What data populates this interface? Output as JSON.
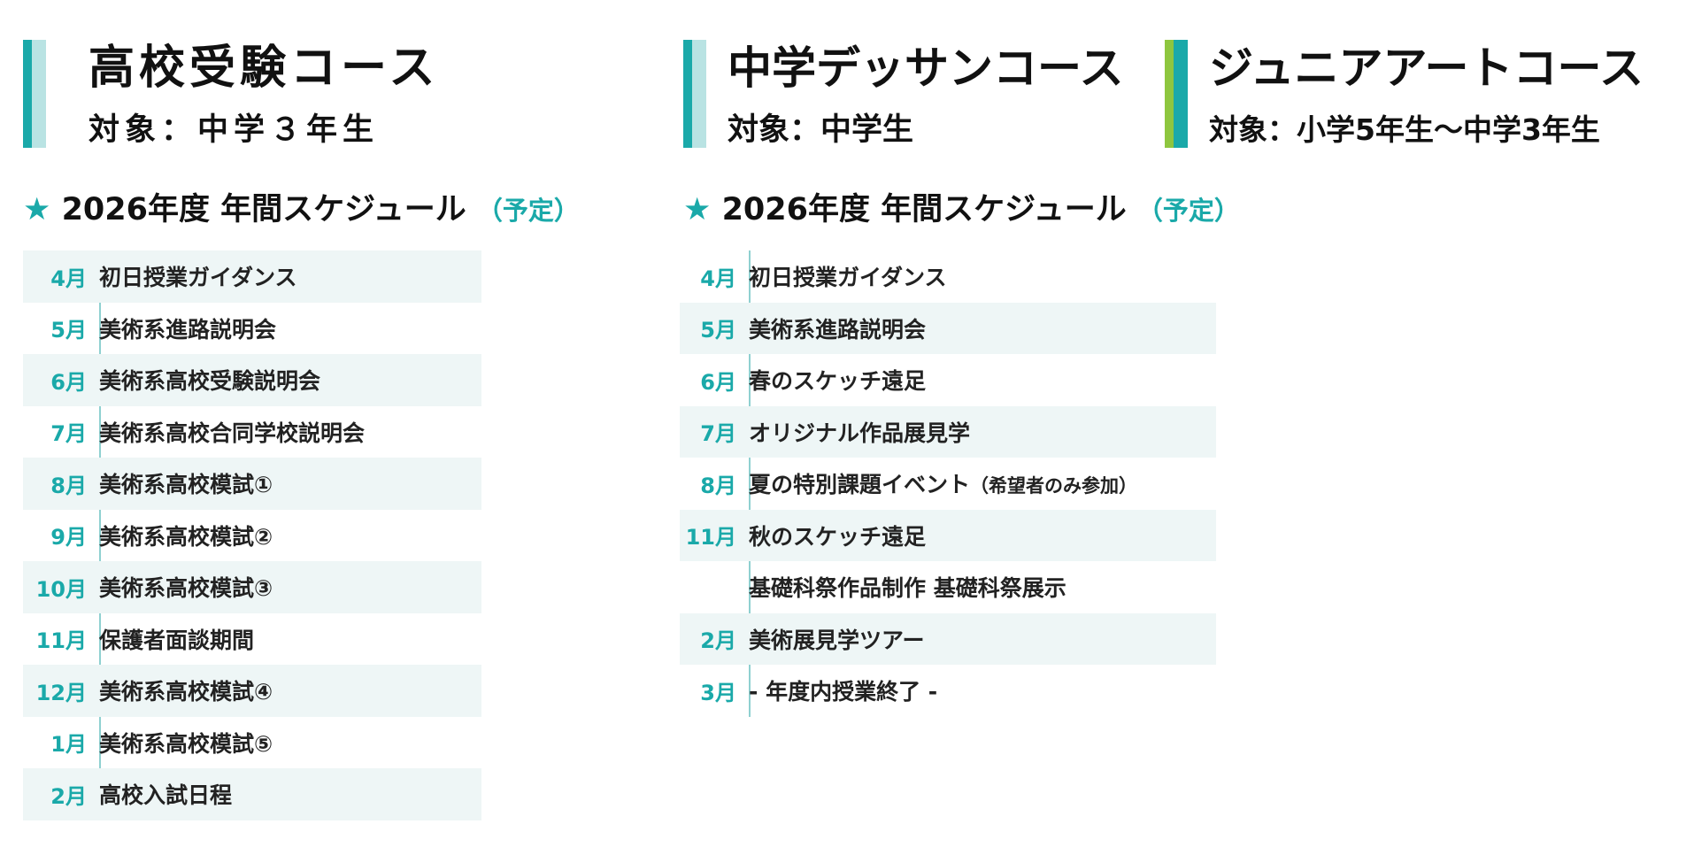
{
  "colors": {
    "accent": "#1aa9a9",
    "accent_light": "#b9e3e3",
    "junior_accent": "#8ec63f",
    "row_shade": "#eef6f6"
  },
  "courses": [
    {
      "title": "高校受験コース",
      "target": "対象：中学３年生"
    },
    {
      "title": "中学デッサンコース",
      "target": "対象：中学生"
    },
    {
      "title": "ジュニアアートコース",
      "target": "対象：小学5年生〜中学3年生"
    }
  ],
  "schedules": [
    {
      "star": "★",
      "heading": "2026年度 年間スケジュール",
      "note": "（予定）",
      "rows": [
        {
          "month": "4月",
          "event": "初日授業ガイダンス"
        },
        {
          "month": "5月",
          "event": "美術系進路説明会"
        },
        {
          "month": "6月",
          "event": "美術系高校受験説明会"
        },
        {
          "month": "7月",
          "event": "美術系高校合同学校説明会"
        },
        {
          "month": "8月",
          "event": "美術系高校模試①"
        },
        {
          "month": "9月",
          "event": "美術系高校模試②"
        },
        {
          "month": "10月",
          "event": "美術系高校模試③"
        },
        {
          "month": "11月",
          "event": "保護者面談期間"
        },
        {
          "month": "12月",
          "event": "美術系高校模試④"
        },
        {
          "month": "1月",
          "event": "美術系高校模試⑤"
        },
        {
          "month": "2月",
          "event": "高校入試日程"
        }
      ]
    },
    {
      "star": "★",
      "heading": "2026年度 年間スケジュール",
      "note": "（予定）",
      "rows": [
        {
          "month": "4月",
          "event": "初日授業ガイダンス"
        },
        {
          "month": "5月",
          "event": "美術系進路説明会"
        },
        {
          "month": "6月",
          "event": "春のスケッチ遠足"
        },
        {
          "month": "7月",
          "event": "オリジナル作品展見学"
        },
        {
          "month": "8月",
          "event": "夏の特別課題イベント",
          "sub": "（希望者のみ参加）"
        },
        {
          "month": "11月",
          "event": "秋のスケッチ遠足"
        },
        {
          "month": "",
          "event": "基礎科祭作品制作 基礎科祭展示"
        },
        {
          "month": "2月",
          "event": "美術展見学ツアー"
        },
        {
          "month": "3月",
          "event": "- 年度内授業終了 -"
        }
      ]
    }
  ]
}
